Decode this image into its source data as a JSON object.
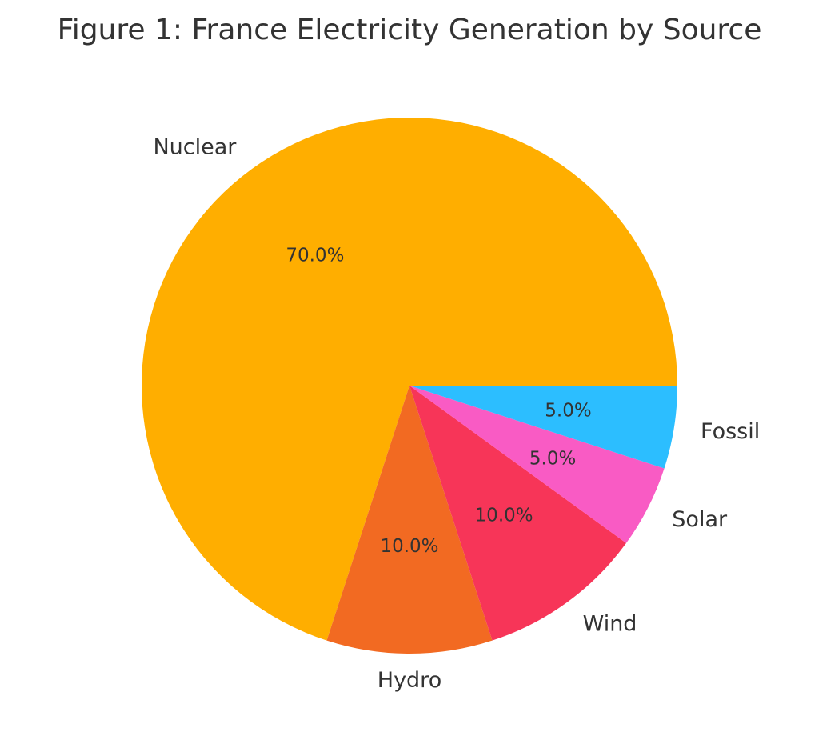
{
  "chart_data": {
    "type": "pie",
    "title": "Figure 1: France Electricity Generation by Source",
    "categories": [
      "Nuclear",
      "Hydro",
      "Wind",
      "Solar",
      "Fossil"
    ],
    "values": [
      70.0,
      10.0,
      10.0,
      5.0,
      5.0
    ],
    "percent_labels": [
      "70.0%",
      "10.0%",
      "10.0%",
      "5.0%",
      "5.0%"
    ],
    "colors": [
      "#FFAE00",
      "#F26A22",
      "#F73558",
      "#F95BC4",
      "#2CBEFF"
    ],
    "start_angle_deg": 0,
    "direction": "counterclockwise"
  }
}
